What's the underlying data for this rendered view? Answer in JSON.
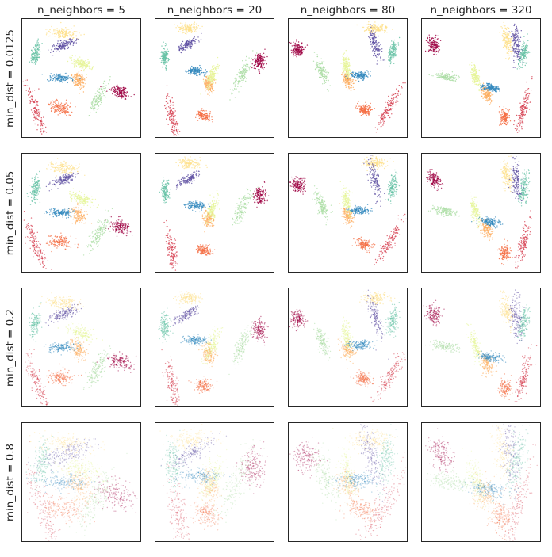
{
  "chart_data": {
    "type": "scatter",
    "layout": "grid 4x4 of scatter panels",
    "column_titles": [
      "n_neighbors = 5",
      "n_neighbors = 20",
      "n_neighbors = 80",
      "n_neighbors = 320"
    ],
    "row_titles": [
      "min_dist = 0.0125",
      "min_dist = 0.05",
      "min_dist = 0.2",
      "min_dist = 0.8"
    ],
    "n_neighbors": [
      5,
      20,
      80,
      320
    ],
    "min_dist": [
      0.0125,
      0.05,
      0.2,
      0.8
    ],
    "axes_ticks": "none",
    "grid": false,
    "colormap": "Spectral",
    "cluster_colors": [
      "#9e0142",
      "#d53e4f",
      "#f46d43",
      "#fdae61",
      "#fee08b",
      "#e6f598",
      "#abdda4",
      "#66c2a5",
      "#3288bd",
      "#5e4fa2"
    ],
    "n_clusters": 10
  }
}
